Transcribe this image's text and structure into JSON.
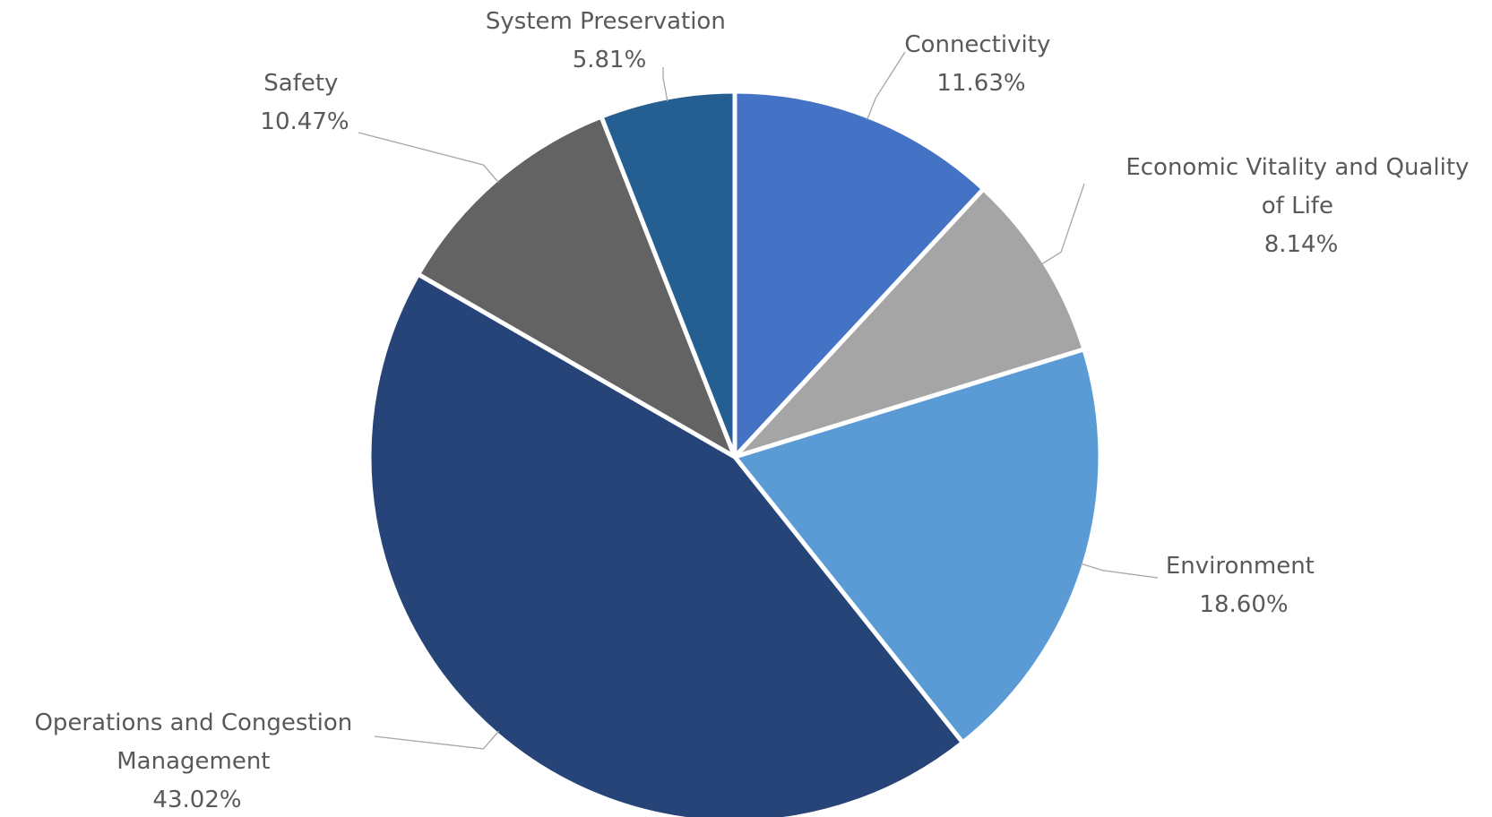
{
  "chart_data": {
    "type": "pie",
    "title": "",
    "start_angle_deg": 0,
    "direction": "clockwise",
    "slices": [
      {
        "name": "Connectivity",
        "label_lines": [
          "Connectivity"
        ],
        "value": 11.63,
        "value_label": "11.63%",
        "color": "#4472C4"
      },
      {
        "name": "Economic Vitality and Quality of Life",
        "label_lines": [
          "Economic Vitality and Quality",
          "of Life"
        ],
        "value": 8.14,
        "value_label": "8.14%",
        "color": "#A5A5A5"
      },
      {
        "name": "Environment",
        "label_lines": [
          "Environment"
        ],
        "value": 18.6,
        "value_label": "18.60%",
        "color": "#5B9BD5"
      },
      {
        "name": "Operations and Congestion Management",
        "label_lines": [
          "Operations and Congestion",
          "Management"
        ],
        "value": 43.02,
        "value_label": "43.02%",
        "color": "#264478"
      },
      {
        "name": "Safety",
        "label_lines": [
          "Safety"
        ],
        "value": 10.47,
        "value_label": "10.47%",
        "color": "#636363"
      },
      {
        "name": "System Preservation",
        "label_lines": [
          "System Preservation"
        ],
        "value": 5.81,
        "value_label": "5.81%",
        "color": "#255E91"
      }
    ]
  }
}
